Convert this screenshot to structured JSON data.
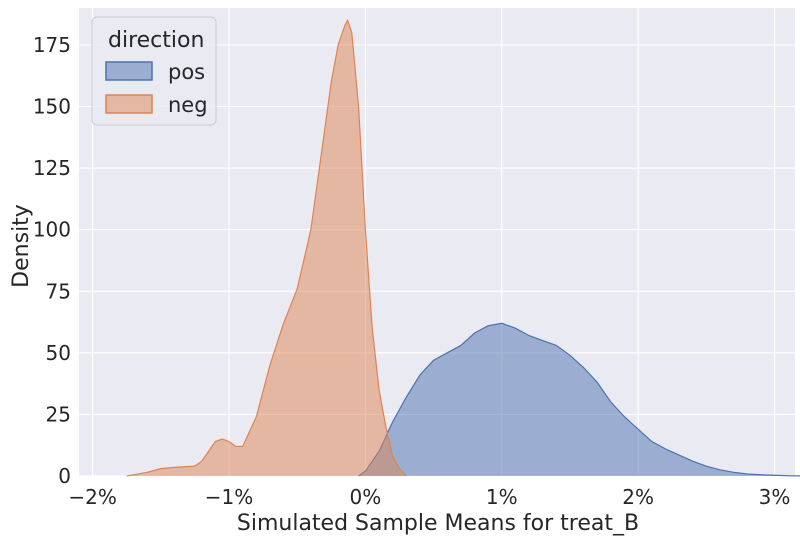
{
  "chart_data": {
    "type": "area",
    "title": "",
    "xlabel": "Simulated Sample Means for treat_B",
    "ylabel": "Density",
    "xlim": [
      -0.021,
      0.0315
    ],
    "ylim": [
      0,
      190
    ],
    "xticks": [
      -0.02,
      -0.01,
      0.0,
      0.01,
      0.02,
      0.03
    ],
    "xtick_labels": [
      "−2%",
      "−1%",
      "0%",
      "1%",
      "2%",
      "3%"
    ],
    "yticks": [
      0,
      25,
      50,
      75,
      100,
      125,
      150,
      175
    ],
    "ytick_labels": [
      "0",
      "25",
      "50",
      "75",
      "100",
      "125",
      "150",
      "175"
    ],
    "grid": true,
    "legend": {
      "title": "direction",
      "placement": "top-left"
    },
    "series": [
      {
        "name": "pos",
        "fill": "#4c72b0",
        "stroke": "#4c72b0",
        "x": [
          -0.0005,
          0.0,
          0.001,
          0.002,
          0.003,
          0.004,
          0.005,
          0.006,
          0.007,
          0.008,
          0.009,
          0.01,
          0.011,
          0.012,
          0.013,
          0.014,
          0.015,
          0.016,
          0.017,
          0.018,
          0.019,
          0.02,
          0.021,
          0.022,
          0.023,
          0.024,
          0.025,
          0.026,
          0.027,
          0.028,
          0.029,
          0.03,
          0.031,
          0.032,
          0.033,
          0.034
        ],
        "y": [
          0,
          2,
          10,
          22,
          32,
          41,
          47,
          50,
          53,
          58,
          61,
          62,
          60,
          57,
          55,
          53,
          49,
          44,
          38,
          30,
          24,
          19,
          14,
          11,
          8.5,
          6,
          4,
          2.5,
          1.5,
          0.8,
          0.5,
          0.3,
          0.1,
          0.05,
          0.02,
          0
        ]
      },
      {
        "name": "neg",
        "fill": "#dd8452",
        "stroke": "#dd8452",
        "x": [
          -0.0175,
          -0.016,
          -0.015,
          -0.014,
          -0.0125,
          -0.012,
          -0.0115,
          -0.011,
          -0.0105,
          -0.01,
          -0.0095,
          -0.009,
          -0.008,
          -0.007,
          -0.006,
          -0.005,
          -0.004,
          -0.003,
          -0.0025,
          -0.002,
          -0.0015,
          -0.0013,
          -0.001,
          -0.0005,
          0.0,
          0.0005,
          0.001,
          0.0015,
          0.002,
          0.0025,
          0.003
        ],
        "y": [
          0,
          1.5,
          3,
          3.5,
          4,
          6,
          10,
          14,
          15,
          14,
          12,
          12,
          24,
          45,
          62,
          76,
          100,
          140,
          160,
          175,
          183,
          185,
          180,
          150,
          100,
          60,
          35,
          20,
          8,
          3,
          0
        ]
      }
    ]
  }
}
